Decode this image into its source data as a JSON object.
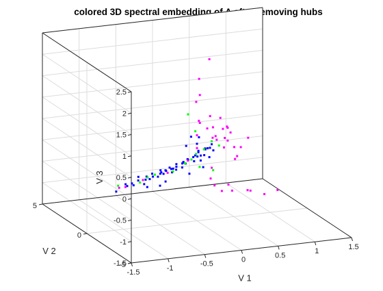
{
  "chart_data": {
    "type": "scatter",
    "title": "colored 3D spectral embedding of A after removing hubs",
    "xlabel": "V 1",
    "ylabel": "V 2",
    "zlabel": "V 3",
    "xlim": [
      -1.5,
      1.5
    ],
    "ylim": [
      -5,
      5
    ],
    "zlim": [
      -1.5,
      2.5
    ],
    "x_ticks": [
      "-1.5",
      "-1",
      "-0.5",
      "0",
      "0.5",
      "1",
      "1.5"
    ],
    "y_ticks": [
      "-5",
      "0",
      "5"
    ],
    "z_ticks": [
      "-1.5",
      "-1",
      "-0.5",
      "0",
      "0.5",
      "1",
      "1.5",
      "2",
      "2.5"
    ],
    "grid": true,
    "colors": {
      "blue": "#0000ff",
      "green": "#00ff00",
      "magenta": "#ff00ff",
      "axis": "#262626",
      "grid": "#dcdcdc"
    },
    "series": [
      {
        "color": "#0000ff",
        "points": [
          [
            -1.1,
            0.0,
            -0.6
          ],
          [
            -0.95,
            0.0,
            -0.5
          ],
          [
            -0.9,
            -0.3,
            -0.45
          ],
          [
            -0.85,
            0.3,
            -0.5
          ],
          [
            -0.8,
            0.0,
            -0.4
          ],
          [
            -0.78,
            -0.5,
            -0.42
          ],
          [
            -0.75,
            0.4,
            -0.38
          ],
          [
            -0.7,
            0.0,
            -0.4
          ],
          [
            -0.68,
            -0.3,
            -0.35
          ],
          [
            -0.65,
            0.3,
            -0.38
          ],
          [
            -0.6,
            0.0,
            -0.35
          ],
          [
            -0.58,
            -0.4,
            -0.3
          ],
          [
            -0.55,
            0.5,
            -0.36
          ],
          [
            -0.5,
            0.0,
            -0.3
          ],
          [
            -0.48,
            -0.2,
            -0.28
          ],
          [
            -0.45,
            0.3,
            -0.32
          ],
          [
            -0.42,
            0.0,
            -0.25
          ],
          [
            -0.4,
            -0.5,
            -0.22
          ],
          [
            -0.38,
            0.4,
            -0.3
          ],
          [
            -0.35,
            0.0,
            -0.22
          ],
          [
            -0.32,
            -0.3,
            -0.2
          ],
          [
            -0.3,
            0.2,
            -0.25
          ],
          [
            -0.28,
            0.0,
            -0.18
          ],
          [
            -0.25,
            -0.4,
            -0.15
          ],
          [
            -0.22,
            0.5,
            -0.2
          ],
          [
            -0.2,
            0.0,
            -0.12
          ],
          [
            -0.18,
            -0.2,
            -0.1
          ],
          [
            -0.15,
            0.3,
            -0.15
          ],
          [
            -0.12,
            0.0,
            -0.05
          ],
          [
            -0.1,
            -0.5,
            -0.02
          ],
          [
            -0.08,
            0.4,
            -0.1
          ],
          [
            -0.05,
            0.0,
            0.0
          ],
          [
            -0.03,
            -0.3,
            0.05
          ],
          [
            0.0,
            0.2,
            0.0
          ],
          [
            0.02,
            0.0,
            0.1
          ],
          [
            0.05,
            -0.4,
            0.08
          ],
          [
            0.08,
            0.5,
            0.05
          ],
          [
            0.1,
            0.0,
            0.15
          ],
          [
            0.12,
            -0.2,
            0.2
          ],
          [
            0.15,
            0.3,
            0.1
          ],
          [
            0.0,
            0.0,
            0.3
          ],
          [
            -0.02,
            0.5,
            0.4
          ],
          [
            0.05,
            -0.5,
            0.25
          ],
          [
            0.1,
            0.6,
            0.35
          ],
          [
            0.15,
            -0.6,
            0.2
          ],
          [
            0.2,
            0.0,
            0.25
          ],
          [
            -0.05,
            0.8,
            0.15
          ],
          [
            0.08,
            -0.8,
            0.3
          ],
          [
            -0.6,
            -0.8,
            -0.45
          ],
          [
            -0.4,
            0.8,
            -0.35
          ],
          [
            -0.2,
            -0.8,
            -0.25
          ],
          [
            -0.9,
            0.6,
            -0.55
          ],
          [
            -0.75,
            -0.6,
            -0.48
          ],
          [
            -0.5,
            -0.6,
            -0.4
          ],
          [
            -0.3,
            0.6,
            -0.28
          ],
          [
            -0.1,
            0.7,
            -0.2
          ],
          [
            0.05,
            0.0,
            -0.1
          ],
          [
            0.1,
            0.4,
            -0.05
          ],
          [
            0.12,
            -0.4,
            0.02
          ],
          [
            0.0,
            -0.7,
            -0.15
          ]
        ]
      },
      {
        "color": "#00ff00",
        "points": [
          [
            -1.05,
            0.2,
            -0.5
          ],
          [
            -0.8,
            -0.2,
            -0.42
          ],
          [
            -0.55,
            0.2,
            -0.34
          ],
          [
            -0.35,
            -0.2,
            -0.25
          ],
          [
            -0.15,
            0.1,
            -0.14
          ],
          [
            0.0,
            0.1,
            0.05
          ],
          [
            0.12,
            0.2,
            0.12
          ],
          [
            0.05,
            0.6,
            0.5
          ],
          [
            0.0,
            1.0,
            0.85
          ],
          [
            0.2,
            0.0,
            0.32
          ],
          [
            -0.1,
            -0.2,
            -0.02
          ],
          [
            0.1,
            -1.0,
            -0.2
          ],
          [
            0.3,
            0.0,
            0.2
          ],
          [
            -0.6,
            0.6,
            -0.45
          ],
          [
            0.0,
            -0.3,
            -0.2
          ]
        ]
      },
      {
        "color": "#ff00ff",
        "points": [
          [
            -1.0,
            0.5,
            -0.6
          ],
          [
            -0.95,
            0.2,
            -0.55
          ],
          [
            -0.7,
            0.3,
            -0.45
          ],
          [
            -0.4,
            0.0,
            -0.3
          ],
          [
            -0.1,
            0.2,
            -0.1
          ],
          [
            0.0,
            0.0,
            0.5
          ],
          [
            0.05,
            0.2,
            0.8
          ],
          [
            0.05,
            0.5,
            1.2
          ],
          [
            0.1,
            0.5,
            1.35
          ],
          [
            0.15,
            1.0,
            1.65
          ],
          [
            0.35,
            1.5,
            2.0
          ],
          [
            0.1,
            0.5,
            0.7
          ],
          [
            0.2,
            0.5,
            0.55
          ],
          [
            0.3,
            1.0,
            0.75
          ],
          [
            0.4,
            1.5,
            0.4
          ],
          [
            0.5,
            1.5,
            0.6
          ],
          [
            0.6,
            1.5,
            0.35
          ],
          [
            0.45,
            1.5,
            0.1
          ],
          [
            0.55,
            1.5,
            -0.1
          ],
          [
            0.7,
            2.0,
            0.15
          ],
          [
            0.75,
            2.0,
            -0.2
          ],
          [
            0.9,
            2.5,
            -0.3
          ],
          [
            1.0,
            2.5,
            -0.1
          ],
          [
            0.7,
            1.5,
            -0.4
          ],
          [
            0.85,
            2.5,
            -0.5
          ],
          [
            0.6,
            1.5,
            0.05
          ],
          [
            0.2,
            0.0,
            -0.3
          ],
          [
            0.15,
            -0.3,
            -0.5
          ],
          [
            0.3,
            0.5,
            -0.8
          ],
          [
            0.4,
            0.5,
            -0.95
          ],
          [
            0.55,
            1.0,
            -0.9
          ],
          [
            0.6,
            1.0,
            -1.05
          ],
          [
            0.75,
            0.5,
            -1.0
          ],
          [
            0.85,
            1.0,
            -1.1
          ],
          [
            1.1,
            1.5,
            -1.3
          ],
          [
            1.4,
            2.5,
            -1.4
          ],
          [
            0.25,
            0.3,
            0.35
          ],
          [
            0.35,
            0.8,
            0.3
          ],
          [
            0.45,
            0.8,
            0.45
          ],
          [
            0.65,
            2.0,
            0.3
          ],
          [
            0.5,
            1.0,
            0.2
          ],
          [
            0.0,
            0.0,
            0.2
          ]
        ]
      }
    ]
  }
}
